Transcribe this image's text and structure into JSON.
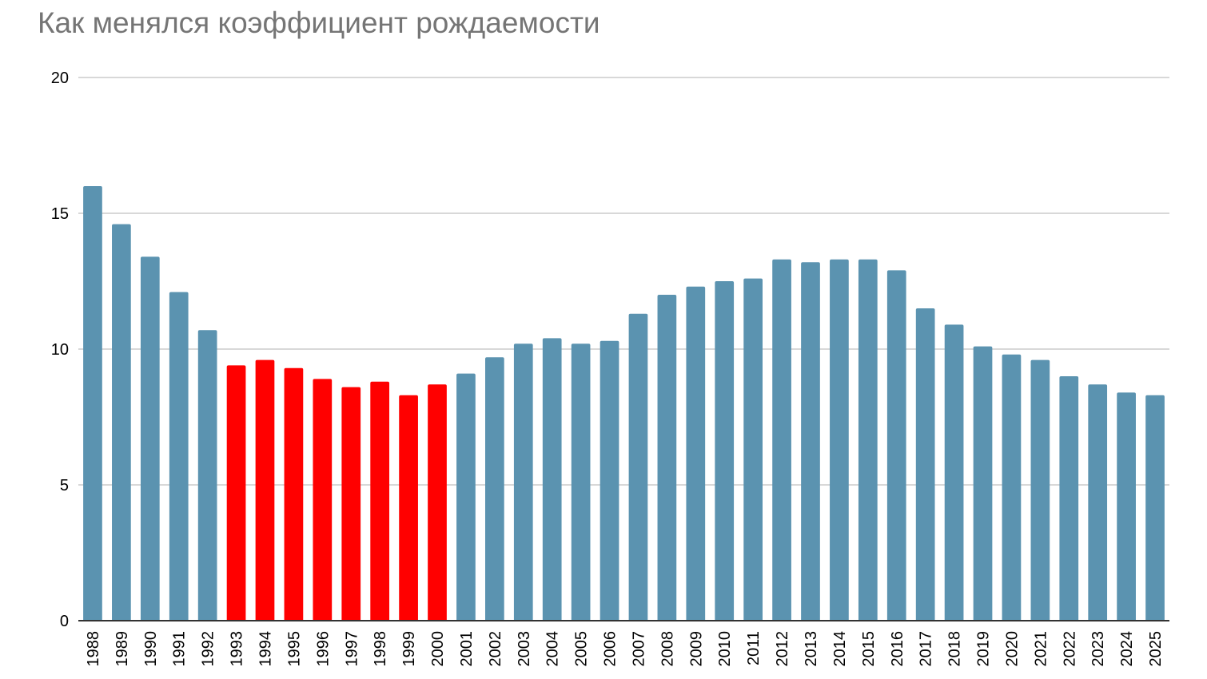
{
  "chart_data": {
    "type": "bar",
    "title": "Как менялся коэффициент рождаемости",
    "xlabel": "",
    "ylabel": "",
    "ylim": [
      0,
      20
    ],
    "yticks": [
      "0",
      "5",
      "10",
      "15",
      "20"
    ],
    "grid": true,
    "legend": "none",
    "categories": [
      "1988",
      "1989",
      "1990",
      "1991",
      "1992",
      "1993",
      "1994",
      "1995",
      "1996",
      "1997",
      "1998",
      "1999",
      "2000",
      "2001",
      "2002",
      "2003",
      "2004",
      "2005",
      "2006",
      "2007",
      "2008",
      "2009",
      "2010",
      "2011",
      "2012",
      "2013",
      "2014",
      "2015",
      "2016",
      "2017",
      "2018",
      "2019",
      "2020",
      "2021",
      "2022",
      "2023",
      "2024",
      "2025"
    ],
    "values": [
      16.0,
      14.6,
      13.4,
      12.1,
      10.7,
      9.4,
      9.6,
      9.3,
      8.9,
      8.6,
      8.8,
      8.3,
      8.7,
      9.1,
      9.7,
      10.2,
      10.4,
      10.2,
      10.3,
      11.3,
      12.0,
      12.3,
      12.5,
      12.6,
      13.3,
      13.2,
      13.3,
      13.3,
      12.9,
      11.5,
      10.9,
      10.1,
      9.8,
      9.6,
      9.0,
      8.7,
      8.4,
      8.3
    ],
    "highlight_categories": [
      "1993",
      "1994",
      "1995",
      "1996",
      "1997",
      "1998",
      "1999",
      "2000"
    ],
    "colors": {
      "bar": "#5b93b0",
      "highlight": "#ff0000",
      "grid": "#cccccc",
      "axis": "#333333"
    }
  }
}
